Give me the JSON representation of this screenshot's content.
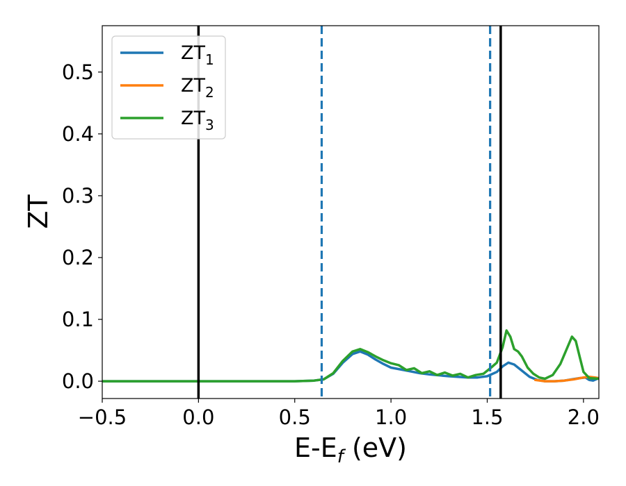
{
  "chart_data": {
    "type": "line",
    "xlabel": "E-E",
    "xlabel_sub": "f",
    "xlabel_unit": " (eV)",
    "ylabel": "ZT",
    "xlim": [
      -0.5,
      2.08
    ],
    "ylim": [
      -0.028,
      0.575
    ],
    "xticks": [
      {
        "value": -0.5,
        "label": "−0.5"
      },
      {
        "value": 0.0,
        "label": "0.0"
      },
      {
        "value": 0.5,
        "label": "0.5"
      },
      {
        "value": 1.0,
        "label": "1.0"
      },
      {
        "value": 1.5,
        "label": "1.5"
      },
      {
        "value": 2.0,
        "label": "2.0"
      }
    ],
    "yticks": [
      {
        "value": 0.0,
        "label": "0.0"
      },
      {
        "value": 0.1,
        "label": "0.1"
      },
      {
        "value": 0.2,
        "label": "0.2"
      },
      {
        "value": 0.3,
        "label": "0.3"
      },
      {
        "value": 0.4,
        "label": "0.4"
      },
      {
        "value": 0.5,
        "label": "0.5"
      }
    ],
    "grid": false,
    "legend_position": "top-left",
    "series": [
      {
        "name": "ZT",
        "name_sub": "1",
        "color": "#1f77b4",
        "x": [
          -0.5,
          0.5,
          0.6,
          0.65,
          0.7,
          0.75,
          0.8,
          0.84,
          0.88,
          0.92,
          0.96,
          1.0,
          1.05,
          1.1,
          1.15,
          1.2,
          1.3,
          1.4,
          1.45,
          1.5,
          1.55,
          1.58,
          1.61,
          1.64,
          1.68,
          1.72,
          1.76,
          1.8,
          1.85,
          1.9,
          1.94,
          1.98,
          2.01,
          2.03,
          2.05,
          2.08
        ],
        "y": [
          0.0,
          0.0,
          0.001,
          0.003,
          0.012,
          0.03,
          0.044,
          0.048,
          0.043,
          0.035,
          0.028,
          0.022,
          0.019,
          0.016,
          0.013,
          0.011,
          0.008,
          0.006,
          0.006,
          0.008,
          0.015,
          0.024,
          0.03,
          0.027,
          0.017,
          0.007,
          0.002,
          0.0,
          0.0,
          0.001,
          0.003,
          0.005,
          0.006,
          0.002,
          0.001,
          0.005
        ]
      },
      {
        "name": "ZT",
        "name_sub": "2",
        "color": "#ff7f0e",
        "x": [
          1.75,
          1.8,
          1.85,
          1.9,
          1.95,
          2.0,
          2.03,
          2.06,
          2.08
        ],
        "y": [
          0.002,
          0.0,
          0.0,
          0.001,
          0.003,
          0.006,
          0.007,
          0.006,
          0.005
        ]
      },
      {
        "name": "ZT",
        "name_sub": "3",
        "color": "#2ca02c",
        "x": [
          -0.5,
          0.5,
          0.6,
          0.65,
          0.7,
          0.75,
          0.8,
          0.84,
          0.88,
          0.92,
          0.96,
          1.0,
          1.04,
          1.08,
          1.12,
          1.16,
          1.2,
          1.24,
          1.28,
          1.32,
          1.36,
          1.4,
          1.44,
          1.48,
          1.52,
          1.55,
          1.58,
          1.6,
          1.62,
          1.64,
          1.66,
          1.68,
          1.71,
          1.74,
          1.77,
          1.8,
          1.84,
          1.88,
          1.91,
          1.94,
          1.96,
          1.98,
          2.0,
          2.03,
          2.08
        ],
        "y": [
          0.0,
          0.0,
          0.001,
          0.003,
          0.013,
          0.033,
          0.048,
          0.052,
          0.047,
          0.04,
          0.034,
          0.029,
          0.026,
          0.018,
          0.021,
          0.013,
          0.016,
          0.01,
          0.014,
          0.009,
          0.012,
          0.006,
          0.01,
          0.012,
          0.022,
          0.03,
          0.055,
          0.082,
          0.072,
          0.052,
          0.048,
          0.04,
          0.022,
          0.012,
          0.006,
          0.004,
          0.01,
          0.028,
          0.05,
          0.072,
          0.065,
          0.04,
          0.015,
          0.005,
          0.004
        ]
      }
    ],
    "vlines": [
      {
        "x": 0.0,
        "color": "#000000",
        "style": "solid"
      },
      {
        "x": 1.57,
        "color": "#000000",
        "style": "solid"
      },
      {
        "x": 0.64,
        "color": "#1f77b4",
        "style": "dashed"
      },
      {
        "x": 1.515,
        "color": "#1f77b4",
        "style": "dashed"
      }
    ]
  }
}
